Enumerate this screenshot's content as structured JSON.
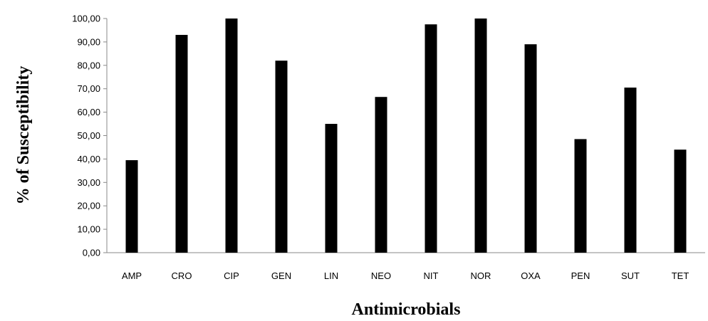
{
  "chart_data": {
    "type": "bar",
    "title": "",
    "xlabel": "Antimicrobials",
    "ylabel": "% of Susceptibility",
    "categories": [
      "AMP",
      "CRO",
      "CIP",
      "GEN",
      "LIN",
      "NEO",
      "NIT",
      "NOR",
      "OXA",
      "PEN",
      "SUT",
      "TET"
    ],
    "values": [
      39.5,
      93.0,
      100.0,
      82.0,
      55.0,
      66.5,
      97.5,
      100.0,
      89.0,
      48.5,
      70.5,
      44.0
    ],
    "ylim": [
      0,
      100
    ],
    "yticks": [
      "0,00",
      "10,00",
      "20,00",
      "30,00",
      "40,00",
      "50,00",
      "60,00",
      "70,00",
      "80,00",
      "90,00",
      "100,00"
    ],
    "grid": false,
    "legend": "none",
    "bar_color": "#000000"
  }
}
